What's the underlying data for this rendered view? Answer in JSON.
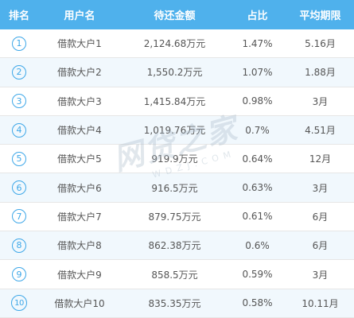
{
  "header": {
    "rank": "排名",
    "user": "用户名",
    "amount": "待还金额",
    "ratio": "占比",
    "term": "平均期限"
  },
  "rows": [
    {
      "rank": "1",
      "user": "借款大户1",
      "amount": "2,124.68万元",
      "ratio": "1.47%",
      "term": "5.16月"
    },
    {
      "rank": "2",
      "user": "借款大户2",
      "amount": "1,550.2万元",
      "ratio": "1.07%",
      "term": "1.88月"
    },
    {
      "rank": "3",
      "user": "借款大户3",
      "amount": "1,415.84万元",
      "ratio": "0.98%",
      "term": "3月"
    },
    {
      "rank": "4",
      "user": "借款大户4",
      "amount": "1,019.76万元",
      "ratio": "0.7%",
      "term": "4.51月"
    },
    {
      "rank": "5",
      "user": "借款大户5",
      "amount": "919.9万元",
      "ratio": "0.64%",
      "term": "12月"
    },
    {
      "rank": "6",
      "user": "借款大户6",
      "amount": "916.5万元",
      "ratio": "0.63%",
      "term": "3月"
    },
    {
      "rank": "7",
      "user": "借款大户7",
      "amount": "879.75万元",
      "ratio": "0.61%",
      "term": "6月"
    },
    {
      "rank": "8",
      "user": "借款大户8",
      "amount": "862.38万元",
      "ratio": "0.6%",
      "term": "6月"
    },
    {
      "rank": "9",
      "user": "借款大户9",
      "amount": "858.5万元",
      "ratio": "0.59%",
      "term": "3月"
    },
    {
      "rank": "10",
      "user": "借款大户10",
      "amount": "835.35万元",
      "ratio": "0.58%",
      "term": "10.11月"
    }
  ],
  "watermark": {
    "main": "网贷之家",
    "sub": "WDZJ.COM"
  },
  "colors": {
    "header_bg": "#4fb1ec",
    "accent": "#3da7e8",
    "alt_row": "#f1f8fd"
  }
}
